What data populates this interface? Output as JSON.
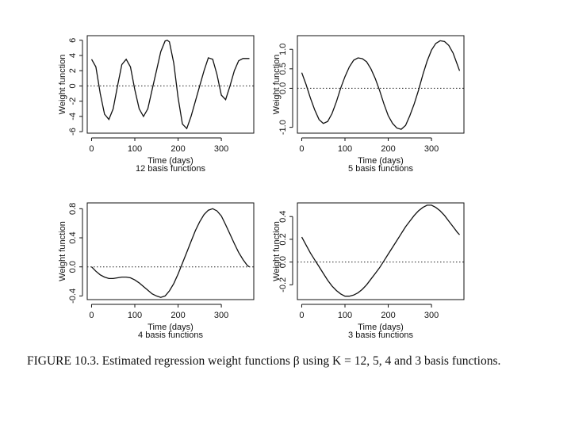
{
  "caption": "FIGURE 10.3. Estimated regression weight functions β using K = 12, 5, 4 and 3 basis functions.",
  "chart_data": [
    {
      "type": "line",
      "panel": "top-left",
      "xlabel": "Time (days)",
      "subtitle": "12  basis functions",
      "ylabel": "Weight function",
      "xlim": [
        -10,
        375
      ],
      "ylim": [
        -6.2,
        6.6
      ],
      "xticks": [
        0,
        100,
        200,
        300
      ],
      "yticks": [
        -6,
        -4,
        -2,
        0,
        2,
        4,
        6
      ],
      "zero_line": 0,
      "x": [
        0,
        10,
        20,
        30,
        40,
        50,
        60,
        70,
        80,
        90,
        100,
        110,
        120,
        130,
        140,
        150,
        160,
        170,
        175,
        180,
        190,
        200,
        210,
        220,
        230,
        240,
        250,
        260,
        270,
        280,
        290,
        300,
        310,
        320,
        330,
        340,
        350,
        360,
        365
      ],
      "y": [
        3.5,
        2.5,
        -1.0,
        -3.7,
        -4.4,
        -3.0,
        0.0,
        2.8,
        3.5,
        2.5,
        -0.5,
        -3.0,
        -4.0,
        -3.0,
        -0.5,
        2.0,
        4.5,
        5.9,
        6.0,
        5.8,
        3.0,
        -1.5,
        -5.0,
        -5.6,
        -4.0,
        -2.0,
        0.0,
        2.0,
        3.7,
        3.5,
        1.5,
        -1.2,
        -1.8,
        0.0,
        2.0,
        3.3,
        3.6,
        3.6,
        3.6
      ]
    },
    {
      "type": "line",
      "panel": "top-right",
      "xlabel": "Time (days)",
      "subtitle": "5  basis functions",
      "ylabel": "Weight function",
      "xlim": [
        -10,
        375
      ],
      "ylim": [
        -1.15,
        1.35
      ],
      "xticks": [
        0,
        100,
        200,
        300
      ],
      "yticks": [
        -1.0,
        0.0,
        0.5,
        1.0
      ],
      "zero_line": 0,
      "x": [
        0,
        10,
        20,
        30,
        40,
        50,
        60,
        70,
        80,
        90,
        100,
        110,
        120,
        130,
        140,
        150,
        160,
        170,
        180,
        190,
        200,
        210,
        220,
        230,
        240,
        250,
        260,
        270,
        280,
        290,
        300,
        310,
        320,
        330,
        340,
        350,
        360,
        365
      ],
      "y": [
        0.4,
        0.1,
        -0.25,
        -0.55,
        -0.8,
        -0.9,
        -0.85,
        -0.65,
        -0.35,
        0.0,
        0.3,
        0.55,
        0.72,
        0.78,
        0.76,
        0.68,
        0.5,
        0.25,
        -0.05,
        -0.4,
        -0.7,
        -0.9,
        -1.02,
        -1.05,
        -0.95,
        -0.7,
        -0.4,
        -0.05,
        0.35,
        0.7,
        0.98,
        1.15,
        1.22,
        1.2,
        1.1,
        0.9,
        0.6,
        0.45
      ]
    },
    {
      "type": "line",
      "panel": "bottom-left",
      "xlabel": "Time (days)",
      "subtitle": "4  basis functions",
      "ylabel": "Weight function",
      "xlim": [
        -10,
        375
      ],
      "ylim": [
        -0.45,
        0.88
      ],
      "xticks": [
        0,
        100,
        200,
        300
      ],
      "yticks": [
        -0.4,
        0.0,
        0.4,
        0.8
      ],
      "zero_line": 0,
      "x": [
        0,
        10,
        20,
        30,
        40,
        50,
        60,
        70,
        80,
        90,
        100,
        110,
        120,
        130,
        140,
        150,
        160,
        170,
        180,
        190,
        200,
        210,
        220,
        230,
        240,
        250,
        260,
        270,
        280,
        290,
        300,
        310,
        320,
        330,
        340,
        350,
        360,
        365
      ],
      "y": [
        0.0,
        -0.06,
        -0.11,
        -0.14,
        -0.16,
        -0.16,
        -0.15,
        -0.14,
        -0.14,
        -0.15,
        -0.18,
        -0.22,
        -0.27,
        -0.32,
        -0.37,
        -0.4,
        -0.42,
        -0.4,
        -0.33,
        -0.23,
        -0.1,
        0.05,
        0.2,
        0.35,
        0.5,
        0.62,
        0.72,
        0.78,
        0.8,
        0.77,
        0.7,
        0.58,
        0.45,
        0.32,
        0.2,
        0.1,
        0.02,
        0.0
      ]
    },
    {
      "type": "line",
      "panel": "bottom-right",
      "xlabel": "Time (days)",
      "subtitle": "3  basis functions",
      "ylabel": "Weight function",
      "xlim": [
        -10,
        375
      ],
      "ylim": [
        -0.33,
        0.52
      ],
      "xticks": [
        0,
        100,
        200,
        300
      ],
      "yticks": [
        -0.2,
        0.0,
        0.2,
        0.4
      ],
      "zero_line": 0,
      "x": [
        0,
        10,
        20,
        30,
        40,
        50,
        60,
        70,
        80,
        90,
        100,
        110,
        120,
        130,
        140,
        150,
        160,
        170,
        180,
        190,
        200,
        210,
        220,
        230,
        240,
        250,
        260,
        270,
        280,
        290,
        300,
        310,
        320,
        330,
        340,
        350,
        360,
        365
      ],
      "y": [
        0.22,
        0.15,
        0.08,
        0.02,
        -0.04,
        -0.1,
        -0.16,
        -0.21,
        -0.25,
        -0.28,
        -0.3,
        -0.3,
        -0.29,
        -0.27,
        -0.24,
        -0.2,
        -0.15,
        -0.1,
        -0.05,
        0.01,
        0.07,
        0.13,
        0.19,
        0.25,
        0.31,
        0.36,
        0.41,
        0.45,
        0.48,
        0.5,
        0.5,
        0.48,
        0.45,
        0.41,
        0.36,
        0.31,
        0.26,
        0.24
      ]
    }
  ]
}
